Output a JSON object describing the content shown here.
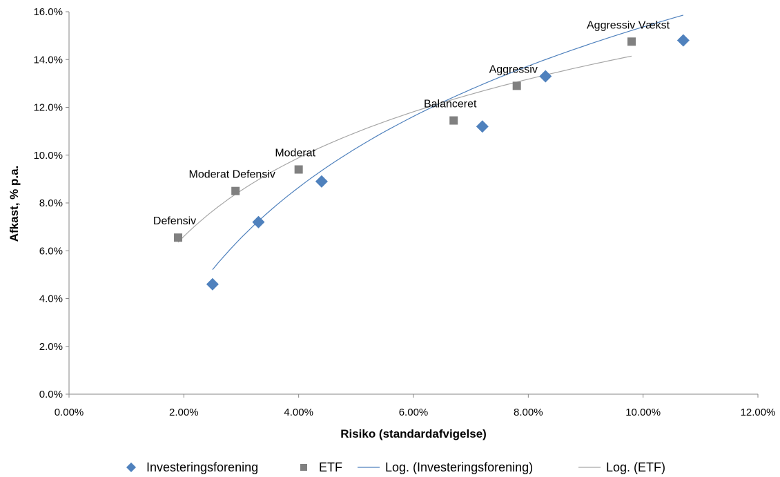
{
  "chart_data": {
    "type": "scatter",
    "xlabel": "Risiko (standardafvigelse)",
    "ylabel": "Afkast, % p.a.",
    "xlim": [
      0,
      0.12
    ],
    "ylim": [
      0,
      0.16
    ],
    "x_ticks": [
      "0.00%",
      "2.00%",
      "4.00%",
      "6.00%",
      "8.00%",
      "10.00%",
      "12.00%"
    ],
    "y_ticks": [
      "0.0%",
      "2.0%",
      "4.0%",
      "6.0%",
      "8.0%",
      "10.0%",
      "12.0%",
      "14.0%",
      "16.0%"
    ],
    "grid": false,
    "legend_position": "bottom",
    "series": [
      {
        "name": "Investeringsforening",
        "marker": "diamond",
        "color": "#4F81BD",
        "points": [
          {
            "x": 0.025,
            "y": 0.046
          },
          {
            "x": 0.033,
            "y": 0.072
          },
          {
            "x": 0.044,
            "y": 0.089
          },
          {
            "x": 0.072,
            "y": 0.112
          },
          {
            "x": 0.083,
            "y": 0.133
          },
          {
            "x": 0.107,
            "y": 0.148
          }
        ]
      },
      {
        "name": "ETF",
        "marker": "square",
        "color": "#808080",
        "points": [
          {
            "x": 0.019,
            "y": 0.0655
          },
          {
            "x": 0.029,
            "y": 0.085
          },
          {
            "x": 0.04,
            "y": 0.094
          },
          {
            "x": 0.067,
            "y": 0.1145
          },
          {
            "x": 0.078,
            "y": 0.129
          },
          {
            "x": 0.098,
            "y": 0.1475
          }
        ]
      }
    ],
    "trendlines": [
      {
        "name": "Log. (Investeringsforening)",
        "type": "log",
        "color": "#4F81BD",
        "x_from": 0.025,
        "x_to": 0.107,
        "a": 0.07325,
        "b": 0.3223
      },
      {
        "name": "Log. (ETF)",
        "type": "log",
        "color": "#A6A6A6",
        "x_from": 0.019,
        "x_to": 0.098,
        "a": 0.04747,
        "b": 0.2517
      }
    ],
    "annotations": [
      {
        "text": "Defensiv",
        "x": 0.019,
        "y": 0.0655
      },
      {
        "text": "Moderat Defensiv",
        "x": 0.029,
        "y": 0.085
      },
      {
        "text": "Moderat",
        "x": 0.04,
        "y": 0.094
      },
      {
        "text": "Balanceret",
        "x": 0.067,
        "y": 0.1145
      },
      {
        "text": "Aggressiv",
        "x": 0.078,
        "y": 0.129
      },
      {
        "text": "Aggressiv Vækst",
        "x": 0.098,
        "y": 0.1475
      }
    ],
    "legend": [
      {
        "label": "Investeringsforening",
        "kind": "diamond",
        "color": "#4F81BD"
      },
      {
        "label": "ETF",
        "kind": "square",
        "color": "#808080"
      },
      {
        "label": "Log. (Investeringsforening)",
        "kind": "line",
        "color": "#4F81BD"
      },
      {
        "label": "Log. (ETF)",
        "kind": "line",
        "color": "#A6A6A6"
      }
    ]
  }
}
